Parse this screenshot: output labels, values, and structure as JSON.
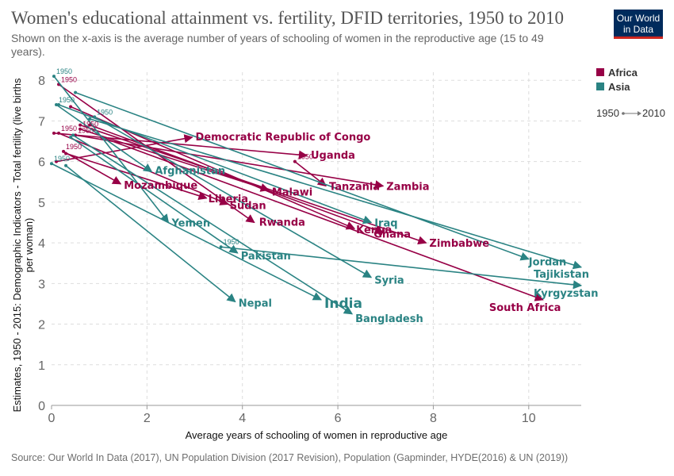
{
  "header": {
    "title": "Women's educational attainment vs. fertility, DFID territories, 1950 to 2010",
    "subtitle": "Shown on the x-axis is the average number of years of schooling of women in the reproductive age (15 to 49 years).",
    "logo": [
      "Our World",
      "in Data"
    ]
  },
  "footer": {
    "source": "Source: Our World In Data (2017), UN Population Division (2017 Revision), Population (Gapminder, HYDE(2016) & UN (2019))"
  },
  "legend": {
    "items": [
      {
        "label": "Africa",
        "color": "#970046"
      },
      {
        "label": "Asia",
        "color": "#2a8383"
      }
    ],
    "start_label": "1950",
    "end_label": "2010"
  },
  "chart_data": {
    "type": "scatter",
    "variant": "connected-arrows",
    "xlabel": "Average years of schooling of women in reproductive age",
    "ylabel": "Estimates, 1950 - 2015: Demographic Indicators - Total fertility (live births per woman)",
    "xlim": [
      0,
      11.1
    ],
    "ylim": [
      0,
      8.2
    ],
    "xticks": [
      0,
      2,
      4,
      6,
      8,
      10
    ],
    "yticks": [
      0,
      1,
      2,
      3,
      4,
      5,
      6,
      7,
      8
    ],
    "grid": "horizontal and vertical dashed",
    "series": [
      {
        "name": "Democratic Republic of Congo",
        "region": "Africa",
        "start": {
          "year": "1950",
          "x": 0.1,
          "y": 6.0
        },
        "end": {
          "x": 2.95,
          "y": 6.6
        },
        "label": "Democratic Republic of Congo"
      },
      {
        "name": "Uganda",
        "region": "Africa",
        "start": {
          "year": "1950",
          "x": 0.05,
          "y": 6.7
        },
        "end": {
          "x": 5.35,
          "y": 6.15
        },
        "label": "Uganda"
      },
      {
        "name": "Zambia",
        "region": "Africa",
        "start": {
          "year": "1950",
          "x": 0.5,
          "y": 6.65
        },
        "end": {
          "x": 6.95,
          "y": 5.4
        },
        "label": "Zambia"
      },
      {
        "name": "Tanzania",
        "region": "Africa",
        "start": {
          "year": "1950",
          "x": 5.1,
          "y": 6.0
        },
        "end": {
          "x": 5.75,
          "y": 5.4
        },
        "label": "Tanzania"
      },
      {
        "name": "Malawi",
        "region": "Africa",
        "start": {
          "year": "1950",
          "x": 0.6,
          "y": 6.8
        },
        "end": {
          "x": 4.55,
          "y": 5.3
        },
        "label": "Malawi"
      },
      {
        "name": "Mozambique",
        "region": "Africa",
        "start": {
          "year": "1950",
          "x": 0.25,
          "y": 6.25
        },
        "end": {
          "x": 1.45,
          "y": 5.45
        },
        "label": "Mozambique"
      },
      {
        "name": "Liberia",
        "region": "Africa",
        "start": {
          "year": "1950",
          "x": 0.3,
          "y": 6.2
        },
        "end": {
          "x": 3.25,
          "y": 5.1
        },
        "label": "Liberia"
      },
      {
        "name": "Sudan",
        "region": "Africa",
        "start": {
          "year": "1950",
          "x": 0.15,
          "y": 6.7
        },
        "end": {
          "x": 3.7,
          "y": 4.95
        },
        "label": "Sudan"
      },
      {
        "name": "Rwanda",
        "region": "Africa",
        "start": {
          "year": "1950",
          "x": 0.15,
          "y": 7.9
        },
        "end": {
          "x": 4.25,
          "y": 4.5
        },
        "label": "Rwanda"
      },
      {
        "name": "Kenya",
        "region": "Africa",
        "start": {
          "year": "1950",
          "x": 0.4,
          "y": 7.35
        },
        "end": {
          "x": 6.35,
          "y": 4.35
        },
        "label": "Kenya"
      },
      {
        "name": "Ghana",
        "region": "Africa",
        "start": {
          "year": "1950",
          "x": 0.8,
          "y": 6.9
        },
        "end": {
          "x": 6.95,
          "y": 4.25
        },
        "label": "Ghana"
      },
      {
        "name": "Zimbabwe",
        "region": "Africa",
        "start": {
          "year": "1950",
          "x": 0.6,
          "y": 6.9
        },
        "end": {
          "x": 7.85,
          "y": 4.0
        },
        "label": "Zimbabwe"
      },
      {
        "name": "South Africa",
        "region": "Africa",
        "start": {
          "year": "1950",
          "x": 1.05,
          "y": 6.6
        },
        "end": {
          "x": 10.3,
          "y": 2.6
        },
        "label": "South Africa"
      },
      {
        "name": "Afghanistan",
        "region": "Asia",
        "start": {
          "year": "1950",
          "x": 0.1,
          "y": 7.4
        },
        "end": {
          "x": 2.1,
          "y": 5.75
        },
        "label": "Afghanistan"
      },
      {
        "name": "Yemen",
        "region": "Asia",
        "start": {
          "year": "1950",
          "x": 0.05,
          "y": 8.1
        },
        "end": {
          "x": 2.45,
          "y": 4.5
        },
        "label": "Yemen"
      },
      {
        "name": "Iraq",
        "region": "Asia",
        "start": {
          "year": "1950",
          "x": 0.15,
          "y": 7.4
        },
        "end": {
          "x": 6.7,
          "y": 4.5
        },
        "label": "Iraq"
      },
      {
        "name": "Jordan",
        "region": "Asia",
        "start": {
          "year": "1950",
          "x": 0.5,
          "y": 7.7
        },
        "end": {
          "x": 10.0,
          "y": 3.6
        },
        "label": "Jordan"
      },
      {
        "name": "Tajikistan",
        "region": "Asia",
        "start": {
          "year": "1950",
          "x": 0.8,
          "y": 7.05
        },
        "end": {
          "x": 11.1,
          "y": 3.4
        },
        "label": "Tajikistan"
      },
      {
        "name": "Kyrgyzstan",
        "region": "Asia",
        "start": {
          "year": "1950",
          "x": 3.55,
          "y": 3.9
        },
        "end": {
          "x": 11.1,
          "y": 2.95
        },
        "label": "Kyrgyzstan"
      },
      {
        "name": "Pakistan",
        "region": "Asia",
        "start": {
          "year": "1950",
          "x": 0.4,
          "y": 6.6
        },
        "end": {
          "x": 3.9,
          "y": 3.75
        },
        "label": "Pakistan"
      },
      {
        "name": "Syria",
        "region": "Asia",
        "start": {
          "year": "1950",
          "x": 0.9,
          "y": 7.1
        },
        "end": {
          "x": 6.7,
          "y": 3.15
        },
        "label": "Syria"
      },
      {
        "name": "Nepal",
        "region": "Asia",
        "start": {
          "year": "1950",
          "x": 0.3,
          "y": 5.9
        },
        "end": {
          "x": 3.85,
          "y": 2.55
        },
        "label": "Nepal"
      },
      {
        "name": "India",
        "region": "Asia",
        "start": {
          "year": "1950",
          "x": 0.0,
          "y": 5.95
        },
        "end": {
          "x": 5.65,
          "y": 2.6
        },
        "label": "India"
      },
      {
        "name": "Bangladesh",
        "region": "Asia",
        "start": {
          "year": "1950",
          "x": 0.45,
          "y": 6.65
        },
        "end": {
          "x": 6.3,
          "y": 2.25
        },
        "label": "Bangladesh"
      }
    ]
  }
}
